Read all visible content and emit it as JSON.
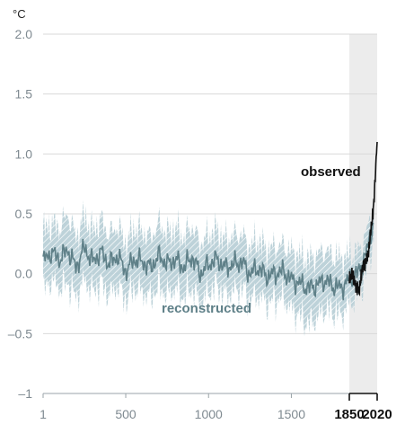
{
  "chart_data": {
    "type": "line",
    "unit_label": "°C",
    "xlim": [
      1,
      2020
    ],
    "ylim": [
      -1,
      2
    ],
    "y_ticks": [
      {
        "value": 2.0,
        "label": "2.0"
      },
      {
        "value": 1.5,
        "label": "1.5"
      },
      {
        "value": 1.0,
        "label": "1.0"
      },
      {
        "value": 0.5,
        "label": "0.5"
      },
      {
        "value": 0.0,
        "label": "0.0"
      },
      {
        "value": -0.5,
        "label": "–0.5"
      },
      {
        "value": -1.0,
        "label": "–1"
      }
    ],
    "x_ticks": [
      {
        "value": 1,
        "label": "1",
        "bold": false
      },
      {
        "value": 500,
        "label": "500",
        "bold": false
      },
      {
        "value": 1000,
        "label": "1000",
        "bold": false
      },
      {
        "value": 1500,
        "label": "1500",
        "bold": false
      },
      {
        "value": 1850,
        "label": "1850",
        "bold": true
      },
      {
        "value": 2020,
        "label": "2020",
        "bold": true
      }
    ],
    "shaded_period": [
      1850,
      2020
    ],
    "grid": "horizontal",
    "colors": {
      "reconstructed": "#5f8088",
      "band": "#a9c3cb",
      "observed": "#111111",
      "shade": "#ececec",
      "grid": "#d9d9d9"
    },
    "series": [
      {
        "name": "reconstructed",
        "x": [
          1,
          50,
          100,
          150,
          200,
          250,
          300,
          350,
          400,
          450,
          500,
          550,
          600,
          650,
          700,
          750,
          800,
          850,
          900,
          950,
          1000,
          1050,
          1100,
          1150,
          1200,
          1250,
          1300,
          1350,
          1400,
          1450,
          1500,
          1550,
          1600,
          1650,
          1700,
          1750,
          1800,
          1850,
          1900,
          1950,
          2000
        ],
        "y": [
          0.1,
          0.18,
          0.12,
          0.2,
          0.05,
          0.22,
          0.1,
          0.18,
          0.08,
          0.15,
          0.02,
          0.12,
          0.1,
          0.05,
          0.15,
          0.08,
          0.12,
          0.05,
          0.14,
          0.0,
          0.08,
          0.12,
          0.05,
          0.08,
          0.1,
          0.0,
          0.05,
          -0.02,
          0.0,
          0.02,
          -0.05,
          -0.08,
          -0.12,
          -0.1,
          -0.05,
          -0.1,
          -0.12,
          -0.05,
          0.0,
          0.15,
          0.45
        ],
        "lower": [
          -0.15,
          -0.05,
          -0.12,
          -0.08,
          -0.2,
          -0.05,
          -0.15,
          -0.08,
          -0.18,
          -0.1,
          -0.22,
          -0.12,
          -0.15,
          -0.2,
          -0.1,
          -0.18,
          -0.12,
          -0.2,
          -0.12,
          -0.25,
          -0.15,
          -0.1,
          -0.18,
          -0.15,
          -0.12,
          -0.22,
          -0.18,
          -0.25,
          -0.22,
          -0.2,
          -0.3,
          -0.35,
          -0.42,
          -0.38,
          -0.3,
          -0.32,
          -0.35,
          -0.25,
          -0.18,
          -0.02,
          0.3
        ],
        "upper": [
          0.35,
          0.42,
          0.38,
          0.5,
          0.3,
          0.48,
          0.35,
          0.45,
          0.32,
          0.4,
          0.25,
          0.38,
          0.35,
          0.3,
          0.42,
          0.33,
          0.38,
          0.3,
          0.4,
          0.25,
          0.32,
          0.36,
          0.28,
          0.32,
          0.33,
          0.22,
          0.28,
          0.2,
          0.22,
          0.24,
          0.18,
          0.15,
          0.12,
          0.15,
          0.2,
          0.15,
          0.12,
          0.15,
          0.18,
          0.32,
          0.6
        ],
        "label": "reconstructed"
      },
      {
        "name": "observed",
        "x": [
          1850,
          1870,
          1890,
          1910,
          1930,
          1950,
          1960,
          1970,
          1980,
          1990,
          2000,
          2010,
          2020
        ],
        "y": [
          -0.05,
          0.0,
          -0.1,
          -0.15,
          0.05,
          0.1,
          0.15,
          0.2,
          0.35,
          0.45,
          0.6,
          0.85,
          1.1
        ],
        "label": "observed"
      }
    ]
  }
}
